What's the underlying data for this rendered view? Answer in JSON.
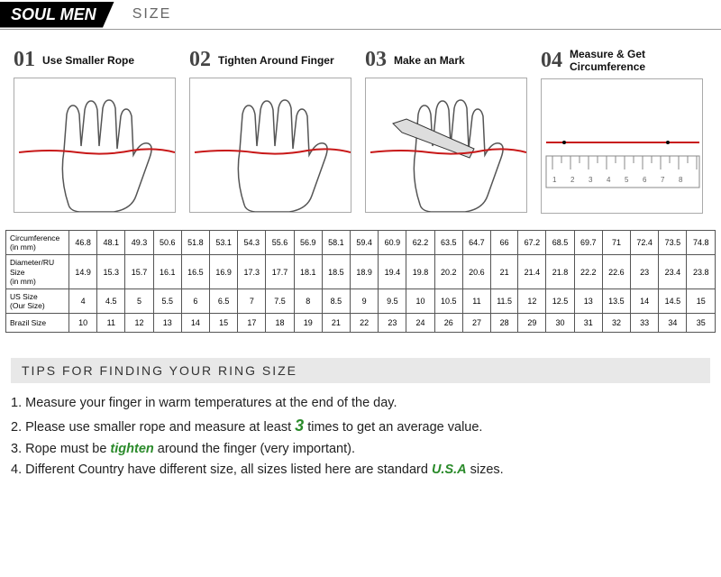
{
  "header": {
    "brand": "SOUL MEN",
    "section": "SIZE"
  },
  "steps": [
    {
      "num": "01",
      "title": "Use Smaller Rope"
    },
    {
      "num": "02",
      "title": "Tighten Around Finger"
    },
    {
      "num": "03",
      "title": "Make an Mark"
    },
    {
      "num": "04",
      "title": "Measure & Get Circumference"
    }
  ],
  "table": {
    "row_labels": [
      "Circumference (in mm)",
      "Diameter/RU Size (in mm)",
      "US Size (Our Size)",
      "Brazil Size"
    ],
    "rows": [
      [
        "46.8",
        "48.1",
        "49.3",
        "50.6",
        "51.8",
        "53.1",
        "54.3",
        "55.6",
        "56.9",
        "58.1",
        "59.4",
        "60.9",
        "62.2",
        "63.5",
        "64.7",
        "66",
        "67.2",
        "68.5",
        "69.7",
        "71",
        "72.4",
        "73.5",
        "74.8"
      ],
      [
        "14.9",
        "15.3",
        "15.7",
        "16.1",
        "16.5",
        "16.9",
        "17.3",
        "17.7",
        "18.1",
        "18.5",
        "18.9",
        "19.4",
        "19.8",
        "20.2",
        "20.6",
        "21",
        "21.4",
        "21.8",
        "22.2",
        "22.6",
        "23",
        "23.4",
        "23.8"
      ],
      [
        "4",
        "4.5",
        "5",
        "5.5",
        "6",
        "6.5",
        "7",
        "7.5",
        "8",
        "8.5",
        "9",
        "9.5",
        "10",
        "10.5",
        "11",
        "11.5",
        "12",
        "12.5",
        "13",
        "13.5",
        "14",
        "14.5",
        "15"
      ],
      [
        "10",
        "11",
        "12",
        "13",
        "14",
        "15",
        "17",
        "18",
        "19",
        "21",
        "22",
        "23",
        "24",
        "26",
        "27",
        "28",
        "29",
        "30",
        "31",
        "32",
        "33",
        "34",
        "35"
      ]
    ]
  },
  "tips": {
    "heading": "TIPS FOR FINDING YOUR RING SIZE",
    "lines": {
      "t1a": "1. Measure your finger in warm temperatures at the end of the day.",
      "t2a": "2. Please use smaller rope and measure at least ",
      "t2h": "3",
      "t2b": " times to get an average value.",
      "t3a": "3. Rope must be ",
      "t3h": "tighten",
      "t3b": " around the finger (very important).",
      "t4a": "4. Different Country have different size, all sizes listed here are standard ",
      "t4h": "U.S.A",
      "t4b": " sizes."
    }
  },
  "colors": {
    "rope": "#c81818",
    "hand_stroke": "#555",
    "ruler": "#888"
  }
}
